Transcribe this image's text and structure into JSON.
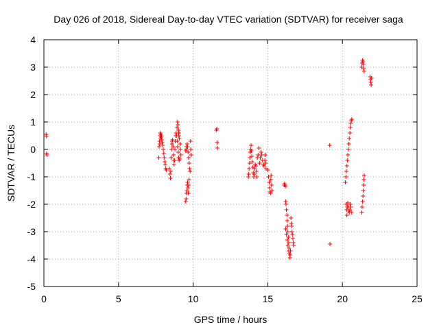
{
  "chart_data": {
    "type": "scatter",
    "title": "Day 026 of 2018, Sidereal Day-to-day VTEC variation (SDTVAR) for receiver saga",
    "xlabel": "GPS time / hours",
    "ylabel": "SDTVAR / TECUs",
    "xlim": [
      0,
      25
    ],
    "ylim": [
      -5,
      4
    ],
    "xticks": [
      0,
      5,
      10,
      15,
      20,
      25
    ],
    "yticks": [
      -5,
      -4,
      -3,
      -2,
      -1,
      0,
      1,
      2,
      3,
      4
    ],
    "xtick_labels": [
      "0",
      "5",
      "10",
      "15",
      "20",
      "25"
    ],
    "ytick_labels": [
      "-5",
      "-4",
      "-3",
      "-2",
      "-1",
      "0",
      "1",
      "2",
      "3",
      "4"
    ],
    "grid": true,
    "marker": "+",
    "color": "#ff0000",
    "series": [
      {
        "name": "SDTVAR",
        "points": [
          [
            0.15,
            0.55
          ],
          [
            0.17,
            0.48
          ],
          [
            0.18,
            -0.15
          ],
          [
            0.2,
            -0.2
          ],
          [
            7.7,
            -0.3
          ],
          [
            7.72,
            0.1
          ],
          [
            7.75,
            0.3
          ],
          [
            7.78,
            0.5
          ],
          [
            7.8,
            0.6
          ],
          [
            7.83,
            0.55
          ],
          [
            7.86,
            0.45
          ],
          [
            7.9,
            0.35
          ],
          [
            7.93,
            0.25
          ],
          [
            7.96,
            0.15
          ],
          [
            8.0,
            0.0
          ],
          [
            8.03,
            -0.15
          ],
          [
            8.06,
            -0.3
          ],
          [
            8.1,
            -0.45
          ],
          [
            8.13,
            -0.55
          ],
          [
            8.16,
            -0.7
          ],
          [
            8.2,
            -0.75
          ],
          [
            7.76,
            0.2
          ],
          [
            7.82,
            0.4
          ],
          [
            7.88,
            0.5
          ],
          [
            8.4,
            -0.7
          ],
          [
            8.45,
            -0.9
          ],
          [
            8.48,
            -1.05
          ],
          [
            8.5,
            -0.8
          ],
          [
            8.52,
            -0.3
          ],
          [
            8.55,
            0.0
          ],
          [
            8.58,
            0.2
          ],
          [
            8.6,
            0.3
          ],
          [
            8.62,
            0.35
          ],
          [
            8.65,
            0.1
          ],
          [
            8.68,
            -0.2
          ],
          [
            8.7,
            -0.4
          ],
          [
            8.72,
            -0.55
          ],
          [
            8.75,
            -0.4
          ],
          [
            8.78,
            0.0
          ],
          [
            8.8,
            0.3
          ],
          [
            8.83,
            0.5
          ],
          [
            8.86,
            0.6
          ],
          [
            8.9,
            0.5
          ],
          [
            8.93,
            0.3
          ],
          [
            8.96,
            0.1
          ],
          [
            9.0,
            -0.1
          ],
          [
            9.03,
            -0.3
          ],
          [
            9.06,
            -0.4
          ],
          [
            9.1,
            -0.35
          ],
          [
            8.92,
            0.8
          ],
          [
            8.95,
            1.0
          ],
          [
            8.98,
            0.9
          ],
          [
            9.02,
            0.7
          ],
          [
            9.05,
            0.6
          ],
          [
            9.08,
            0.4
          ],
          [
            9.12,
            0.2
          ],
          [
            9.15,
            0.0
          ],
          [
            9.18,
            -0.2
          ],
          [
            9.0,
            0.6
          ],
          [
            9.04,
            0.5
          ],
          [
            9.5,
            -1.9
          ],
          [
            9.53,
            -1.8
          ],
          [
            9.55,
            -1.6
          ],
          [
            9.58,
            -1.5
          ],
          [
            9.6,
            -1.3
          ],
          [
            9.63,
            -1.2
          ],
          [
            9.65,
            -1.4
          ],
          [
            9.68,
            -1.6
          ],
          [
            9.7,
            -1.3
          ],
          [
            9.72,
            -1.1
          ],
          [
            9.5,
            -0.05
          ],
          [
            9.53,
            0.0
          ],
          [
            9.56,
            0.1
          ],
          [
            9.6,
            0.2
          ],
          [
            9.63,
            0.1
          ],
          [
            9.66,
            -0.1
          ],
          [
            9.7,
            -0.3
          ],
          [
            9.73,
            -0.5
          ],
          [
            9.76,
            -0.7
          ],
          [
            9.8,
            -0.8
          ],
          [
            9.82,
            0.3
          ],
          [
            9.84,
            0.0
          ],
          [
            9.86,
            -0.2
          ],
          [
            11.55,
            0.7
          ],
          [
            11.58,
            0.75
          ],
          [
            11.6,
            0.25
          ],
          [
            11.62,
            0.05
          ],
          [
            13.7,
            -1.0
          ],
          [
            13.72,
            -0.9
          ],
          [
            13.75,
            -0.7
          ],
          [
            13.78,
            -0.5
          ],
          [
            13.8,
            -0.3
          ],
          [
            13.82,
            -0.1
          ],
          [
            13.85,
            0.0
          ],
          [
            13.88,
            0.15
          ],
          [
            13.9,
            -0.05
          ],
          [
            13.93,
            -0.25
          ],
          [
            13.96,
            -0.45
          ],
          [
            14.0,
            -0.65
          ],
          [
            14.03,
            -0.85
          ],
          [
            14.06,
            -1.0
          ],
          [
            14.1,
            -0.9
          ],
          [
            14.13,
            -0.7
          ],
          [
            14.16,
            -0.55
          ],
          [
            14.2,
            -0.6
          ],
          [
            14.23,
            -0.8
          ],
          [
            14.26,
            -1.0
          ],
          [
            14.3,
            -0.3
          ],
          [
            14.35,
            -0.2
          ],
          [
            14.4,
            0.05
          ],
          [
            14.45,
            -0.5
          ],
          [
            14.5,
            -0.3
          ],
          [
            14.55,
            -0.1
          ],
          [
            14.6,
            -0.2
          ],
          [
            14.65,
            -0.4
          ],
          [
            14.7,
            -0.55
          ],
          [
            14.75,
            -0.6
          ],
          [
            14.8,
            -0.4
          ],
          [
            14.82,
            -0.2
          ],
          [
            14.85,
            -0.5
          ],
          [
            14.88,
            -0.7
          ],
          [
            15.0,
            -0.75
          ],
          [
            15.05,
            -1.0
          ],
          [
            15.1,
            -1.2
          ],
          [
            15.12,
            -1.4
          ],
          [
            15.15,
            -1.55
          ],
          [
            15.18,
            -1.6
          ],
          [
            15.2,
            -1.1
          ],
          [
            15.22,
            -0.95
          ],
          [
            15.25,
            -1.3
          ],
          [
            15.28,
            -1.5
          ],
          [
            16.1,
            -1.3
          ],
          [
            16.12,
            -1.25
          ],
          [
            16.15,
            -1.3
          ],
          [
            16.18,
            -1.35
          ],
          [
            16.2,
            -1.9
          ],
          [
            16.22,
            -2.0
          ],
          [
            16.25,
            -2.2
          ],
          [
            16.28,
            -2.4
          ],
          [
            16.3,
            -2.6
          ],
          [
            16.32,
            -2.8
          ],
          [
            16.35,
            -3.0
          ],
          [
            16.38,
            -3.2
          ],
          [
            16.4,
            -3.4
          ],
          [
            16.42,
            -3.6
          ],
          [
            16.45,
            -3.8
          ],
          [
            16.48,
            -3.95
          ],
          [
            16.5,
            -3.85
          ],
          [
            16.52,
            -3.7
          ],
          [
            16.2,
            -2.9
          ],
          [
            16.25,
            -3.1
          ],
          [
            16.3,
            -3.3
          ],
          [
            16.35,
            -3.5
          ],
          [
            16.4,
            -3.7
          ],
          [
            16.55,
            -2.5
          ],
          [
            16.58,
            -2.7
          ],
          [
            16.6,
            -2.8
          ],
          [
            16.62,
            -3.0
          ],
          [
            16.65,
            -3.1
          ],
          [
            16.68,
            -3.25
          ],
          [
            16.7,
            -3.4
          ],
          [
            16.72,
            -3.5
          ],
          [
            19.15,
            0.15
          ],
          [
            19.17,
            -3.45
          ],
          [
            20.2,
            -1.2
          ],
          [
            20.23,
            -1.0
          ],
          [
            20.26,
            -0.8
          ],
          [
            20.3,
            -0.6
          ],
          [
            20.33,
            -0.4
          ],
          [
            20.36,
            -0.2
          ],
          [
            20.4,
            0.0
          ],
          [
            20.43,
            0.2
          ],
          [
            20.46,
            0.4
          ],
          [
            20.5,
            0.6
          ],
          [
            20.53,
            0.8
          ],
          [
            20.56,
            0.95
          ],
          [
            20.6,
            1.05
          ],
          [
            20.63,
            1.1
          ],
          [
            20.25,
            -2.0
          ],
          [
            20.28,
            -2.2
          ],
          [
            20.3,
            -2.4
          ],
          [
            20.33,
            -2.1
          ],
          [
            20.36,
            -1.95
          ],
          [
            20.4,
            -2.1
          ],
          [
            20.43,
            -2.25
          ],
          [
            20.46,
            -2.3
          ],
          [
            20.5,
            -2.2
          ],
          [
            20.53,
            -2.0
          ],
          [
            20.56,
            -2.1
          ],
          [
            20.6,
            -2.3
          ],
          [
            21.3,
            -2.3
          ],
          [
            21.32,
            -2.1
          ],
          [
            21.35,
            -1.9
          ],
          [
            21.38,
            -1.7
          ],
          [
            21.4,
            -1.5
          ],
          [
            21.42,
            -1.3
          ],
          [
            21.44,
            -1.1
          ],
          [
            21.46,
            -0.95
          ],
          [
            21.3,
            3.0
          ],
          [
            21.32,
            3.15
          ],
          [
            21.35,
            3.25
          ],
          [
            21.38,
            3.2
          ],
          [
            21.4,
            3.1
          ],
          [
            21.42,
            2.95
          ],
          [
            21.45,
            2.85
          ],
          [
            21.85,
            2.65
          ],
          [
            21.88,
            2.55
          ],
          [
            21.9,
            2.45
          ],
          [
            21.93,
            2.35
          ],
          [
            21.95,
            2.6
          ]
        ]
      }
    ]
  }
}
